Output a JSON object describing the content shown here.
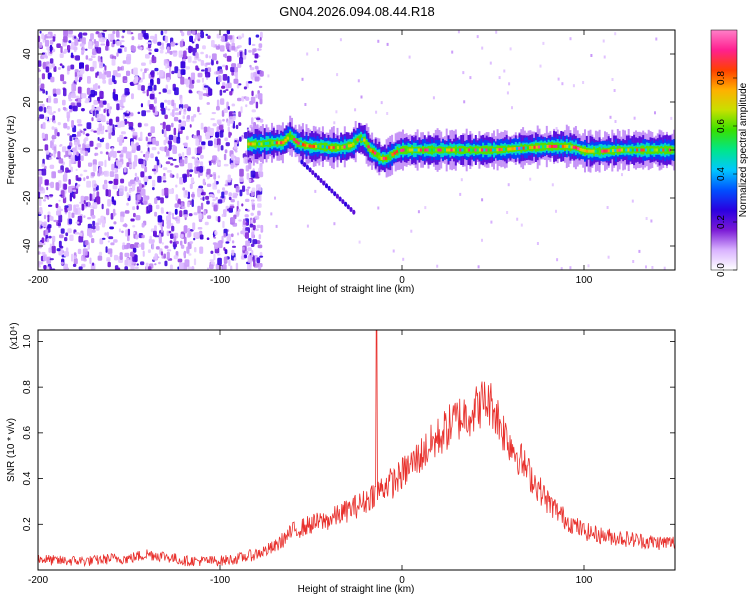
{
  "title": "GN04.2026.094.08.44.R18",
  "chart_data": [
    {
      "type": "heatmap",
      "xlabel": "Height of straight line (km)",
      "ylabel": "Frequency (Hz)",
      "xlim": [
        -200,
        150
      ],
      "ylim": [
        -50,
        50
      ],
      "xticks": [
        -200,
        -100,
        0,
        100
      ],
      "yticks": [
        -40,
        -20,
        0,
        20,
        40
      ],
      "colorbar": {
        "label": "Normalized spectral amplitude",
        "range": [
          0,
          1
        ],
        "ticks": [
          "0.0",
          "0.2",
          "0.4",
          "0.6",
          "0.8"
        ],
        "colormap": [
          "#ffffff",
          "#d9b3ff",
          "#7a1ad6",
          "#2a00e0",
          "#0050ff",
          "#00c8ff",
          "#00e68a",
          "#38e000",
          "#c8e000",
          "#ffb000",
          "#ff4000",
          "#ff2090",
          "#ff80c8"
        ]
      },
      "ridge": {
        "x": [
          -85,
          -78,
          -72,
          -66,
          -62,
          -58,
          -54,
          -50,
          -45,
          -40,
          -34,
          -28,
          -24,
          -21,
          -18,
          -15,
          -12,
          -9,
          -6,
          -3,
          0,
          10,
          20,
          30,
          40,
          50,
          60,
          70,
          80,
          90,
          95,
          98,
          101,
          110,
          120,
          135,
          150
        ],
        "y": [
          2.5,
          2.5,
          3,
          3,
          6,
          3,
          2,
          1.5,
          1.5,
          1,
          1,
          2,
          5,
          4,
          0,
          -1.5,
          -3.5,
          -3.5,
          -2,
          -0.5,
          0,
          0,
          0,
          0,
          0,
          0,
          0.5,
          1,
          1.5,
          1.5,
          1,
          0,
          -0.5,
          -0.5,
          0,
          0,
          0
        ]
      },
      "noise_region_xlim": [
        -200,
        -85
      ],
      "noise_amplitude_range": [
        0.05,
        0.25
      ],
      "ridge_amplitude_range": [
        0.4,
        0.95
      ]
    },
    {
      "type": "line",
      "xlabel": "Height of straight line (km)",
      "ylabel": "SNR (10 * v/v)",
      "multiplier_label": "(x10⁴)",
      "xlim": [
        -200,
        150
      ],
      "ylim": [
        0,
        1.05
      ],
      "xticks": [
        -200,
        -100,
        0,
        100
      ],
      "yticks": [
        0.2,
        0.4,
        0.6,
        0.8,
        1.0
      ],
      "series_color": "#e8302c",
      "x": [
        -200,
        -190,
        -180,
        -170,
        -160,
        -150,
        -140,
        -130,
        -120,
        -110,
        -100,
        -90,
        -80,
        -70,
        -60,
        -50,
        -40,
        -30,
        -20,
        -15,
        -12,
        -8,
        -5,
        0,
        10,
        20,
        30,
        40,
        45,
        50,
        55,
        60,
        70,
        80,
        90,
        100,
        110,
        120,
        130,
        140,
        150
      ],
      "y": [
        0.05,
        0.04,
        0.04,
        0.04,
        0.05,
        0.05,
        0.07,
        0.06,
        0.04,
        0.04,
        0.04,
        0.05,
        0.07,
        0.1,
        0.17,
        0.2,
        0.22,
        0.26,
        0.3,
        0.34,
        0.35,
        0.38,
        0.38,
        0.42,
        0.5,
        0.58,
        0.66,
        0.7,
        0.74,
        0.72,
        0.62,
        0.55,
        0.42,
        0.3,
        0.22,
        0.17,
        0.15,
        0.14,
        0.13,
        0.12,
        0.12
      ],
      "spike": {
        "x": -14,
        "y": 1.05
      },
      "noise_amplitude": 0.06
    }
  ]
}
